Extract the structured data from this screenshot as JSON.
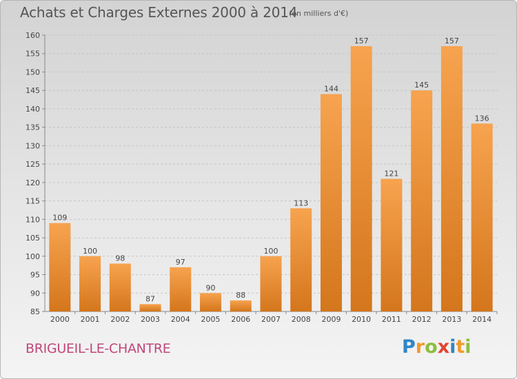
{
  "title": "Achats et Charges Externes 2000 à 2014",
  "subtitle": "(en milliers d'€)",
  "commune": "BRIGUEIL-LE-CHANTRE",
  "logo": {
    "letters": [
      "P",
      "r",
      "o",
      "x",
      "i",
      "t",
      "i"
    ],
    "colors": [
      "#2f86c8",
      "#f29a2e",
      "#8bbf3f",
      "#e2452f",
      "#2f86c8",
      "#f29a2e",
      "#8bbf3f"
    ]
  },
  "colors": {
    "bar_top": "#f7a34f",
    "bar_bottom": "#d4761c",
    "title": "#555555",
    "commune": "#c0477a"
  },
  "chart_data": {
    "type": "bar",
    "categories": [
      "2000",
      "2001",
      "2002",
      "2003",
      "2004",
      "2005",
      "2006",
      "2007",
      "2008",
      "2009",
      "2010",
      "2011",
      "2012",
      "2013",
      "2014"
    ],
    "values": [
      109,
      100,
      98,
      87,
      97,
      90,
      88,
      100,
      113,
      144,
      157,
      121,
      145,
      157,
      136
    ],
    "ylim": [
      85,
      160
    ],
    "yticks": [
      85,
      90,
      95,
      100,
      105,
      110,
      115,
      120,
      125,
      130,
      135,
      140,
      145,
      150,
      155,
      160
    ],
    "grid": true,
    "xlabel": "",
    "ylabel": ""
  }
}
